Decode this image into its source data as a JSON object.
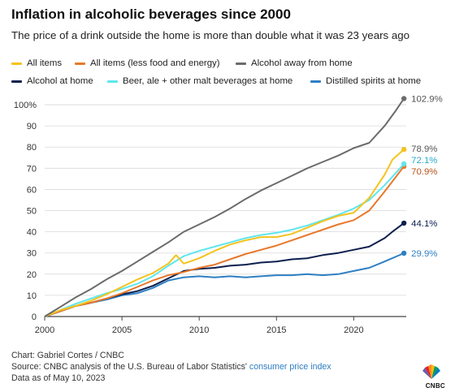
{
  "header": {
    "title": "Inflation in alcoholic beverages since 2000",
    "subtitle": "The price of a drink outside the home is more than double what it was 23 years ago"
  },
  "footer": {
    "credit": "Chart: Gabriel Cortes / CNBC",
    "source_prefix": "Source: CNBC analysis of the U.S. Bureau of Labor Statistics' ",
    "source_link": "consumer price index",
    "date_note": "Data as of May 10, 2023"
  },
  "logo": {
    "icon": "peacock-logo-icon",
    "text": "CNBC"
  },
  "chart_data": {
    "type": "line",
    "title": "Inflation in alcoholic beverages since 2000",
    "xlabel": "",
    "ylabel": "",
    "xlim": [
      2000,
      2023.4
    ],
    "ylim": [
      0,
      105
    ],
    "x_ticks": [
      2000,
      2005,
      2010,
      2015,
      2020
    ],
    "y_ticks": [
      0,
      10,
      20,
      30,
      40,
      50,
      60,
      70,
      80,
      90,
      100
    ],
    "y_tick_labels": [
      "0",
      "10",
      "20",
      "30",
      "40",
      "50",
      "60",
      "70",
      "80",
      "90",
      "100%"
    ],
    "grid": "horizontal",
    "legend_position": "top",
    "series": [
      {
        "name": "All items",
        "color": "#f4c31f",
        "end_label": "78.9%",
        "end_value": 78.9,
        "points": [
          [
            2000,
            0
          ],
          [
            2001,
            3
          ],
          [
            2002,
            5
          ],
          [
            2003,
            7.5
          ],
          [
            2004,
            10.5
          ],
          [
            2005,
            14
          ],
          [
            2006,
            17.5
          ],
          [
            2007,
            20.5
          ],
          [
            2008,
            25
          ],
          [
            2008.5,
            29
          ],
          [
            2009,
            25
          ],
          [
            2010,
            27.5
          ],
          [
            2011,
            31
          ],
          [
            2012,
            34
          ],
          [
            2013,
            36
          ],
          [
            2014,
            37.5
          ],
          [
            2015,
            37.5
          ],
          [
            2016,
            39
          ],
          [
            2017,
            42
          ],
          [
            2018,
            45
          ],
          [
            2019,
            47.5
          ],
          [
            2020,
            49
          ],
          [
            2021,
            56
          ],
          [
            2022,
            67
          ],
          [
            2022.5,
            74
          ],
          [
            2023.25,
            78.9
          ]
        ]
      },
      {
        "name": "All items (less food and energy)",
        "color": "#e8782b",
        "end_label": "70.9%",
        "end_value": 70.9,
        "points": [
          [
            2000,
            0
          ],
          [
            2001,
            2.5
          ],
          [
            2002,
            5
          ],
          [
            2003,
            6.5
          ],
          [
            2004,
            8.5
          ],
          [
            2005,
            11
          ],
          [
            2006,
            14
          ],
          [
            2007,
            17
          ],
          [
            2008,
            19.5
          ],
          [
            2009,
            21
          ],
          [
            2010,
            23
          ],
          [
            2011,
            24.5
          ],
          [
            2012,
            27
          ],
          [
            2013,
            29.5
          ],
          [
            2014,
            31.5
          ],
          [
            2015,
            33.5
          ],
          [
            2016,
            36
          ],
          [
            2017,
            38.5
          ],
          [
            2018,
            41
          ],
          [
            2019,
            43.5
          ],
          [
            2020,
            45.5
          ],
          [
            2021,
            50
          ],
          [
            2022,
            59
          ],
          [
            2023.25,
            70.9
          ]
        ]
      },
      {
        "name": "Alcohol away from home",
        "color": "#6b6b6b",
        "end_label": "102.9%",
        "end_value": 102.9,
        "points": [
          [
            2000,
            0
          ],
          [
            2001,
            4.5
          ],
          [
            2002,
            9
          ],
          [
            2003,
            13
          ],
          [
            2004,
            17.5
          ],
          [
            2005,
            21.5
          ],
          [
            2006,
            26
          ],
          [
            2007,
            30.5
          ],
          [
            2008,
            35
          ],
          [
            2009,
            40
          ],
          [
            2010,
            43.5
          ],
          [
            2011,
            47
          ],
          [
            2012,
            51
          ],
          [
            2013,
            55.5
          ],
          [
            2014,
            59.5
          ],
          [
            2015,
            63
          ],
          [
            2016,
            66.5
          ],
          [
            2017,
            70
          ],
          [
            2018,
            73
          ],
          [
            2019,
            76
          ],
          [
            2020,
            79.5
          ],
          [
            2021,
            82
          ],
          [
            2022,
            90
          ],
          [
            2022.7,
            97
          ],
          [
            2023.25,
            102.9
          ]
        ]
      },
      {
        "name": "Alcohol at home",
        "color": "#0c1f4e",
        "end_label": "44.1%",
        "end_value": 44.1,
        "points": [
          [
            2000,
            0
          ],
          [
            2001,
            2.5
          ],
          [
            2002,
            5
          ],
          [
            2003,
            6.5
          ],
          [
            2004,
            8.5
          ],
          [
            2005,
            10.5
          ],
          [
            2006,
            12
          ],
          [
            2007,
            14.5
          ],
          [
            2008,
            18
          ],
          [
            2009,
            21.5
          ],
          [
            2010,
            22.5
          ],
          [
            2011,
            23
          ],
          [
            2012,
            24
          ],
          [
            2013,
            24.5
          ],
          [
            2014,
            25.5
          ],
          [
            2015,
            26
          ],
          [
            2016,
            27
          ],
          [
            2017,
            27.5
          ],
          [
            2018,
            29
          ],
          [
            2019,
            30
          ],
          [
            2020,
            31.5
          ],
          [
            2021,
            33
          ],
          [
            2022,
            37
          ],
          [
            2022.5,
            40
          ],
          [
            2023.25,
            44.1
          ]
        ]
      },
      {
        "name": "Beer, ale + other malt beverages at home",
        "color": "#5fe6ee",
        "end_label": "72.1%",
        "end_value": 72.1,
        "points": [
          [
            2000,
            0
          ],
          [
            2001,
            3
          ],
          [
            2002,
            6
          ],
          [
            2003,
            8.5
          ],
          [
            2004,
            11
          ],
          [
            2005,
            13
          ],
          [
            2006,
            15.5
          ],
          [
            2007,
            19
          ],
          [
            2008,
            24
          ],
          [
            2009,
            28.5
          ],
          [
            2010,
            31
          ],
          [
            2011,
            33
          ],
          [
            2012,
            35
          ],
          [
            2013,
            37
          ],
          [
            2014,
            38.5
          ],
          [
            2015,
            39.5
          ],
          [
            2016,
            41
          ],
          [
            2017,
            43
          ],
          [
            2018,
            45.5
          ],
          [
            2019,
            48
          ],
          [
            2020,
            51
          ],
          [
            2021,
            55
          ],
          [
            2022,
            62
          ],
          [
            2022.5,
            66
          ],
          [
            2023.25,
            72.1
          ]
        ]
      },
      {
        "name": "Distilled spirits at home",
        "color": "#2e7fc4",
        "end_label": "29.9%",
        "end_value": 29.9,
        "points": [
          [
            2000,
            0
          ],
          [
            2001,
            2.5
          ],
          [
            2002,
            5
          ],
          [
            2003,
            6.5
          ],
          [
            2004,
            8
          ],
          [
            2005,
            10
          ],
          [
            2006,
            11
          ],
          [
            2007,
            13.5
          ],
          [
            2008,
            17
          ],
          [
            2009,
            18.5
          ],
          [
            2010,
            19
          ],
          [
            2011,
            18.5
          ],
          [
            2012,
            19
          ],
          [
            2013,
            18.5
          ],
          [
            2014,
            19
          ],
          [
            2015,
            19.5
          ],
          [
            2016,
            19.5
          ],
          [
            2017,
            20
          ],
          [
            2018,
            19.5
          ],
          [
            2019,
            20
          ],
          [
            2020,
            21.5
          ],
          [
            2021,
            23
          ],
          [
            2022,
            26
          ],
          [
            2023.25,
            29.9
          ]
        ]
      }
    ]
  }
}
